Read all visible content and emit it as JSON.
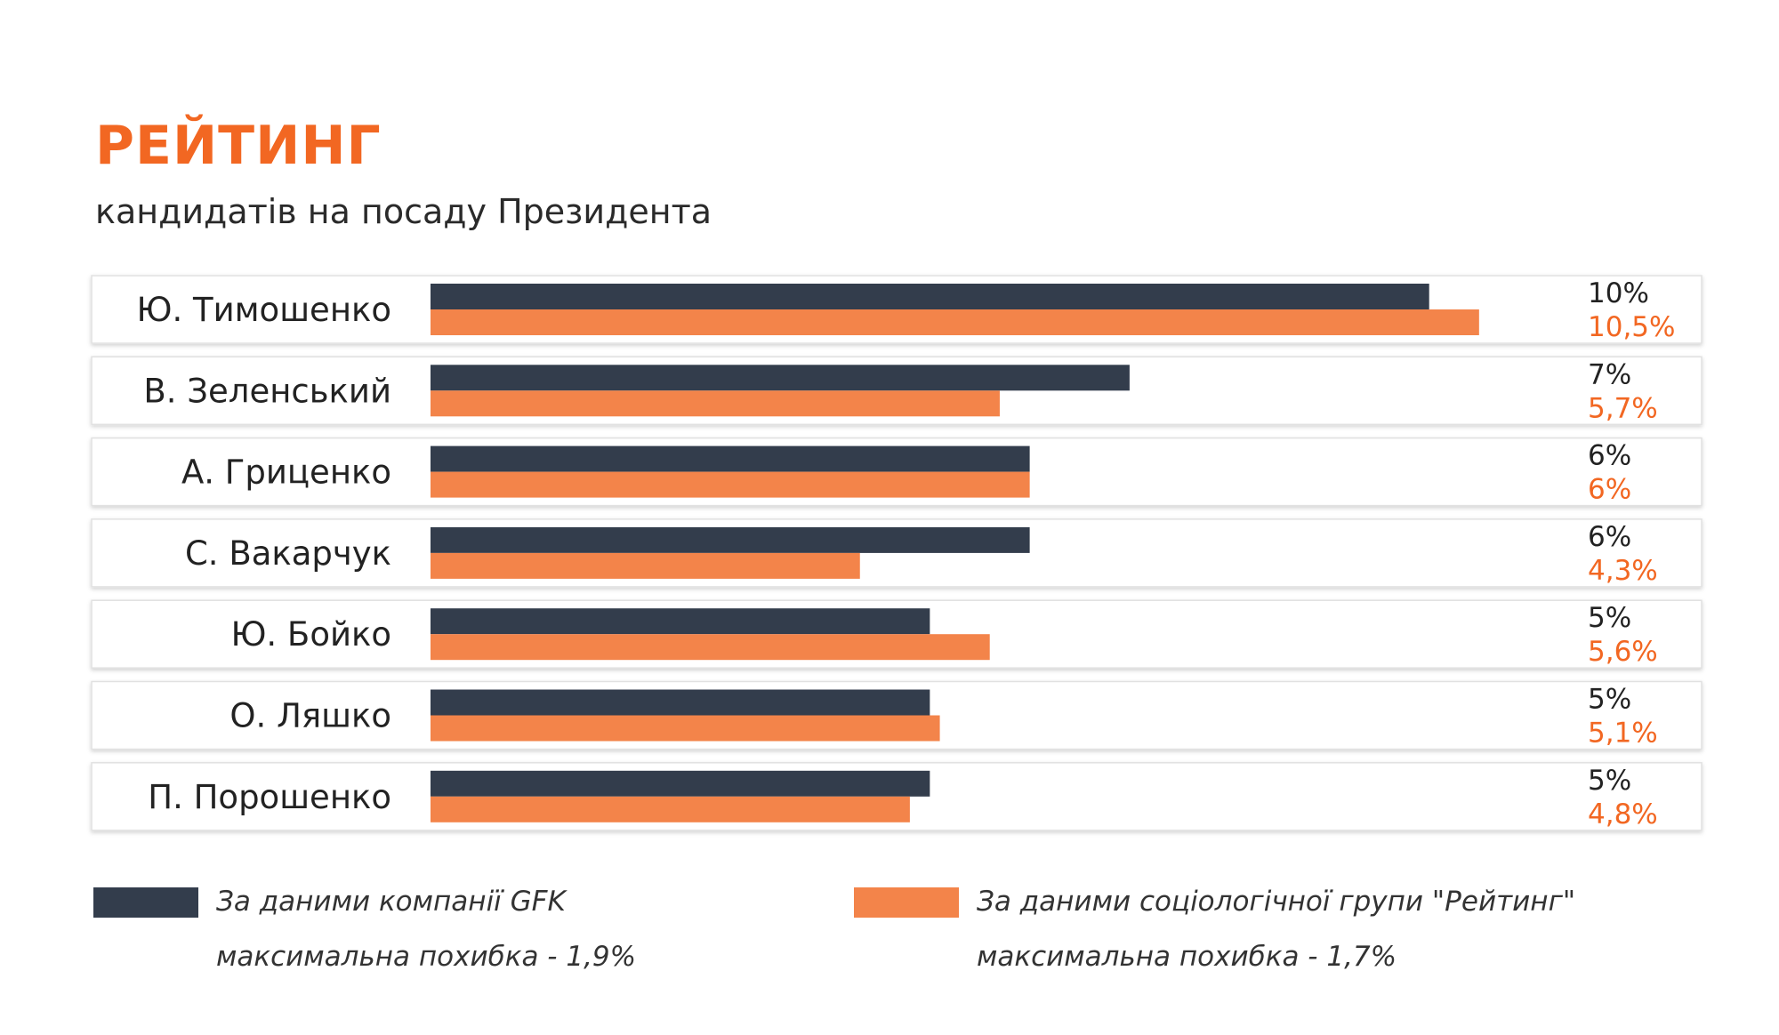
{
  "header": {
    "title": "РЕЙТИНГ",
    "subtitle": "кандидатів на посаду Президента"
  },
  "colors": {
    "accent": "#F26722",
    "series_gfk": "#333D4C",
    "series_rating": "#F3844A",
    "row_border": "#e1e1e1"
  },
  "chart_data": {
    "type": "bar",
    "orientation": "horizontal",
    "categories": [
      "Ю. Тимошенко",
      "В. Зеленський",
      "А. Гриценко",
      "С. Вакарчук",
      "Ю. Бойко",
      "О. Ляшко",
      "П. Порошенко"
    ],
    "series": [
      {
        "name": "За даними компанії GFK",
        "values": [
          10,
          7,
          6,
          6,
          5,
          5,
          5
        ],
        "labels": [
          "10%",
          "7%",
          "6%",
          "6%",
          "5%",
          "5%",
          "5%"
        ]
      },
      {
        "name": "За даними соціологічної групи \"Рейтинг\"",
        "values": [
          10.5,
          5.7,
          6,
          4.3,
          5.6,
          5.1,
          4.8
        ],
        "labels": [
          "10,5%",
          "5,7%",
          "6%",
          "4,3%",
          "5,6%",
          "5,1%",
          "4,8%"
        ]
      }
    ],
    "xlim": [
      0,
      12.47
    ],
    "grid": false,
    "legend_position": "bottom"
  },
  "legend": [
    {
      "line1": "За даними компанії GFK",
      "line2": "максимальна похибка - 1,9%"
    },
    {
      "line1": "За даними соціологічної групи \"Рейтинг\"",
      "line2": "максимальна похибка - 1,7%"
    }
  ]
}
